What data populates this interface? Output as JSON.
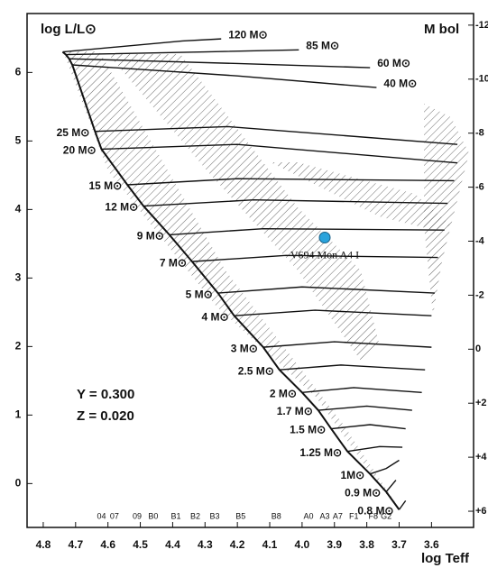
{
  "chart_data": {
    "type": "line",
    "y_title": "log L/L⊙",
    "y2_title": "M bol",
    "x_title": "log Teff",
    "xlim": [
      4.85,
      3.47
    ],
    "ylim": [
      -0.64,
      6.86
    ],
    "y2lim": [
      6.6,
      -12.43
    ],
    "xticks": [
      4.8,
      4.7,
      4.6,
      4.5,
      4.4,
      4.3,
      4.2,
      4.1,
      {
        "value": 4,
        "label": "4.0"
      },
      3.9,
      3.8,
      3.7,
      3.6
    ],
    "yticks": [
      0,
      1,
      2,
      3,
      4,
      5,
      6
    ],
    "y2ticks": [
      -12,
      -10,
      -8,
      -6,
      -4,
      -2,
      0,
      {
        "value": 2,
        "label": "+2"
      },
      {
        "value": 4,
        "label": "+4"
      },
      {
        "value": 6,
        "label": "+6"
      }
    ],
    "spectral_ticks": [
      {
        "value": 4.62,
        "label": "04"
      },
      {
        "value": 4.58,
        "label": "07"
      },
      {
        "value": 4.51,
        "label": "09"
      },
      {
        "value": 4.46,
        "label": "B0"
      },
      {
        "value": 4.39,
        "label": "B1"
      },
      {
        "value": 4.33,
        "label": "B2"
      },
      {
        "value": 4.27,
        "label": "B3"
      },
      {
        "value": 4.19,
        "label": "B5"
      },
      {
        "value": 4.08,
        "label": "B8"
      },
      {
        "value": 3.98,
        "label": "A0"
      },
      {
        "value": 3.93,
        "label": "A3"
      },
      {
        "value": 3.89,
        "label": "A7"
      },
      {
        "value": 3.84,
        "label": "F1"
      },
      {
        "value": 3.78,
        "label": "F8"
      },
      {
        "value": 3.74,
        "label": "G2"
      }
    ],
    "color": "#111111",
    "tracks": [
      {
        "name": "120 M⊙",
        "x": [
          4.74,
          4.37,
          4.25
        ],
        "y": [
          6.3,
          6.46,
          6.49
        ]
      },
      {
        "name": "85 M⊙",
        "x": [
          4.73,
          4.3,
          4.01
        ],
        "y": [
          6.26,
          6.3,
          6.33
        ]
      },
      {
        "name": "60 M⊙",
        "x": [
          4.72,
          4.2,
          3.79
        ],
        "y": [
          6.2,
          6.13,
          6.07
        ]
      },
      {
        "name": "40 M⊙",
        "x": [
          4.71,
          4.2,
          3.77
        ],
        "y": [
          6.11,
          5.95,
          5.78
        ]
      },
      {
        "name": "25 M⊙",
        "x": [
          4.64,
          4.23,
          3.52
        ],
        "y": [
          5.14,
          5.21,
          4.95
        ]
      },
      {
        "name": "20 M⊙",
        "x": [
          4.62,
          4.2,
          3.52
        ],
        "y": [
          4.88,
          4.95,
          4.68
        ]
      },
      {
        "name": "15 M⊙",
        "x": [
          4.54,
          4.2,
          3.53
        ],
        "y": [
          4.36,
          4.45,
          4.42
        ]
      },
      {
        "name": "12 M⊙",
        "x": [
          4.49,
          4.15,
          3.55
        ],
        "y": [
          4.05,
          4.14,
          4.09
        ]
      },
      {
        "name": "9 M⊙",
        "x": [
          4.41,
          4.12,
          3.56
        ],
        "y": [
          3.63,
          3.72,
          3.7
        ]
      },
      {
        "name": "7 M⊙",
        "x": [
          4.34,
          4.05,
          3.58
        ],
        "y": [
          3.24,
          3.33,
          3.3
        ]
      },
      {
        "name": "5 M⊙",
        "x": [
          4.26,
          4.0,
          3.59
        ],
        "y": [
          2.78,
          2.87,
          2.78
        ]
      },
      {
        "name": "4 M⊙",
        "x": [
          4.21,
          3.96,
          3.6
        ],
        "y": [
          2.45,
          2.53,
          2.45
        ]
      },
      {
        "name": "3 M⊙",
        "x": [
          4.12,
          3.9,
          3.6
        ],
        "y": [
          1.99,
          2.07,
          1.99
        ]
      },
      {
        "name": "2.5 M⊙",
        "x": [
          4.07,
          3.88,
          3.62
        ],
        "y": [
          1.66,
          1.73,
          1.66
        ]
      },
      {
        "name": "2 M⊙",
        "x": [
          4.0,
          3.84,
          3.63
        ],
        "y": [
          1.33,
          1.4,
          1.33
        ]
      },
      {
        "name": "1.7 M⊙",
        "x": [
          3.95,
          3.8,
          3.66
        ],
        "y": [
          1.07,
          1.13,
          1.07
        ]
      },
      {
        "name": "1.5 M⊙",
        "x": [
          3.91,
          3.79,
          3.68
        ],
        "y": [
          0.8,
          0.86,
          0.8
        ]
      },
      {
        "name": "1.25 M⊙",
        "x": [
          3.86,
          3.76,
          3.69
        ],
        "y": [
          0.47,
          0.54,
          0.53
        ]
      },
      {
        "name": "1M⊙",
        "x": [
          3.79,
          3.74,
          3.7
        ],
        "y": [
          0.14,
          0.22,
          0.34
        ]
      },
      {
        "name": "0.9 M⊙",
        "x": [
          3.74,
          3.71
        ],
        "y": [
          -0.12,
          0.05
        ]
      },
      {
        "name": "0.8 M⊙",
        "x": [
          3.7,
          3.68
        ],
        "y": [
          -0.38,
          -0.25
        ]
      }
    ],
    "star": {
      "name": "V694 Mon A4 I",
      "x": 3.93,
      "y": 3.59,
      "color": "#29a3dc"
    },
    "annotations": [
      "Y = 0.300",
      "Z = 0.020"
    ]
  }
}
